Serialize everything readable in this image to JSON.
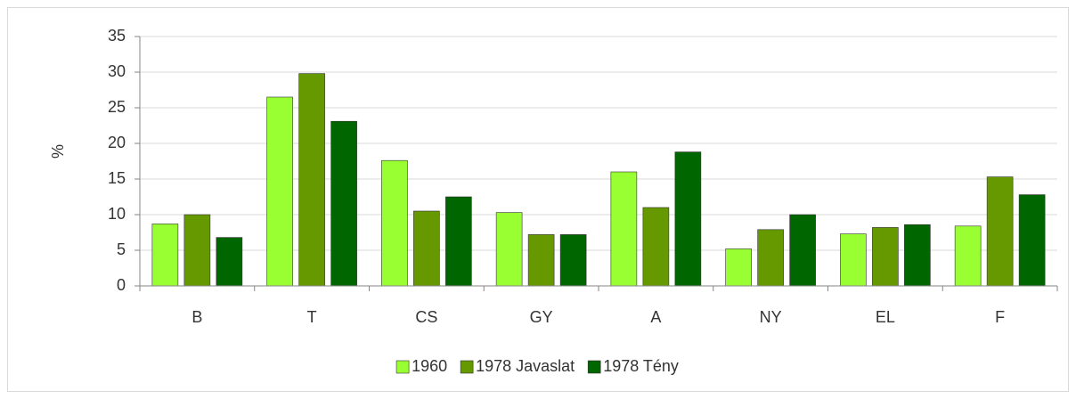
{
  "chart_data": {
    "type": "bar",
    "y_label": "%",
    "categories": [
      "B",
      "T",
      "CS",
      "GY",
      "A",
      "NY",
      "EL",
      "F"
    ],
    "series": [
      {
        "name": "1960",
        "color": "#99ff33",
        "values": [
          8.7,
          26.5,
          17.6,
          10.3,
          16,
          5.2,
          7.3,
          8.4
        ]
      },
      {
        "name": "1978 Javaslat",
        "color": "#669900",
        "values": [
          10,
          29.8,
          10.5,
          7.2,
          11,
          7.9,
          8.2,
          15.3
        ]
      },
      {
        "name": "1978 Tény",
        "color": "#006600",
        "values": [
          6.8,
          23.1,
          12.5,
          7.2,
          18.8,
          10,
          8.6,
          12.8
        ]
      }
    ],
    "ylim": [
      0,
      35
    ],
    "yticks": [
      0,
      5,
      10,
      15,
      20,
      25,
      30,
      35
    ],
    "grid": true,
    "legend": "bottom"
  }
}
